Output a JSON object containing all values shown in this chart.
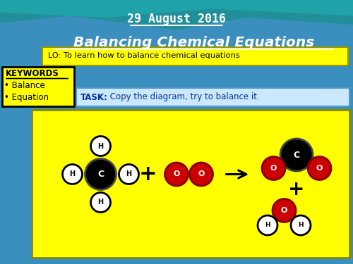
{
  "date_text": "29 August 2016",
  "title_text": "Balancing Chemical Equations",
  "lo_text": "LO: To learn how to balance chemical equations",
  "task_bold": "TASK:",
  "task_rest": " Copy the diagram, try to balance it.",
  "keywords_title": "KEYWORDS",
  "keywords_bullets": [
    "Balance",
    "Equation"
  ],
  "bg_color": "#3a8fbf",
  "yellow_color": "#FFFF00",
  "lo_bg": "#FFFF00",
  "task_bg": "#cce8ff",
  "keywords_bg": "#FFFF00",
  "black_atom": "#000000",
  "white_atom": "#FFFFFF",
  "red_atom": "#CC0000",
  "teal1": "#1a9090",
  "teal2": "#20b8b8",
  "figsize": [
    5.0,
    3.75
  ],
  "dpi": 100
}
